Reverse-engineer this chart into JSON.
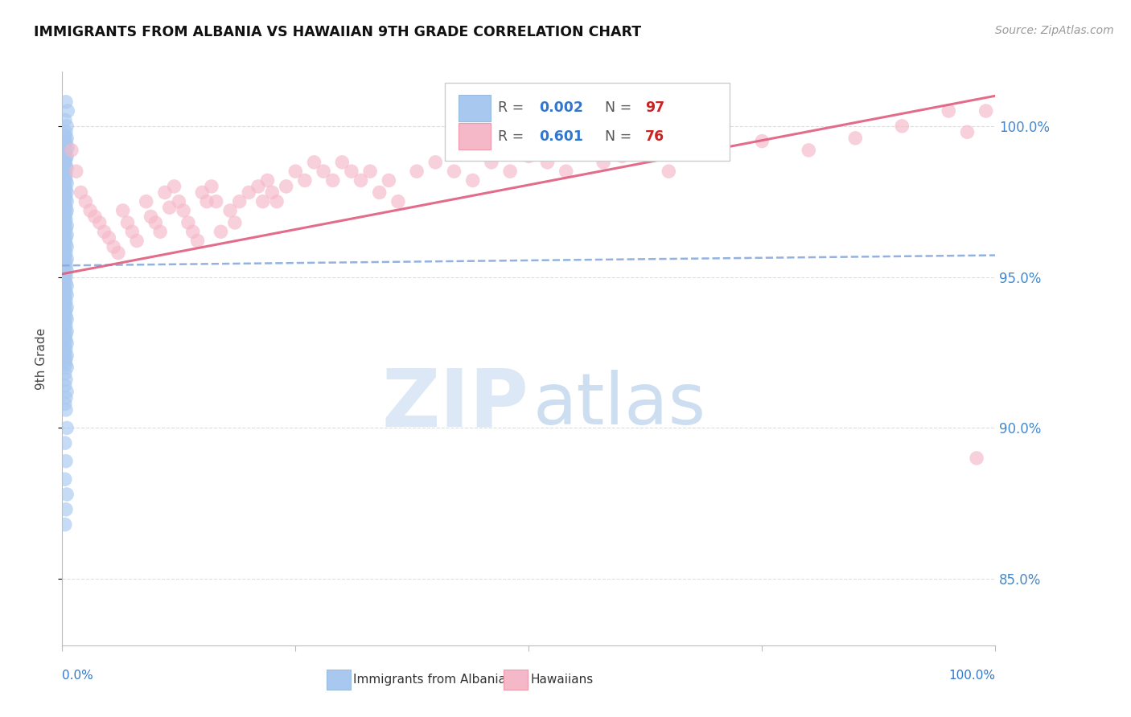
{
  "title": "IMMIGRANTS FROM ALBANIA VS HAWAIIAN 9TH GRADE CORRELATION CHART",
  "source": "Source: ZipAtlas.com",
  "ylabel": "9th Grade",
  "ytick_labels": [
    "85.0%",
    "90.0%",
    "95.0%",
    "100.0%"
  ],
  "ytick_values": [
    0.85,
    0.9,
    0.95,
    1.0
  ],
  "xlim": [
    0.0,
    1.0
  ],
  "ylim": [
    0.828,
    1.018
  ],
  "blue_color": "#a8c8f0",
  "pink_color": "#f5b8c8",
  "blue_line_color": "#88aadd",
  "pink_line_color": "#e06080",
  "blue_scatter_x": [
    0.004,
    0.006,
    0.003,
    0.005,
    0.004,
    0.003,
    0.005,
    0.004,
    0.003,
    0.006,
    0.004,
    0.003,
    0.005,
    0.004,
    0.003,
    0.004,
    0.005,
    0.003,
    0.004,
    0.003,
    0.004,
    0.005,
    0.003,
    0.004,
    0.005,
    0.003,
    0.004,
    0.005,
    0.003,
    0.004,
    0.005,
    0.004,
    0.003,
    0.004,
    0.003,
    0.005,
    0.004,
    0.003,
    0.005,
    0.004,
    0.003,
    0.004,
    0.005,
    0.003,
    0.004,
    0.003,
    0.005,
    0.004,
    0.003,
    0.004,
    0.005,
    0.003,
    0.004,
    0.003,
    0.004,
    0.005,
    0.003,
    0.004,
    0.005,
    0.003,
    0.004,
    0.003,
    0.005,
    0.004,
    0.003,
    0.004,
    0.005,
    0.003,
    0.004,
    0.003,
    0.005,
    0.004,
    0.003,
    0.004,
    0.005,
    0.003,
    0.004,
    0.003,
    0.005,
    0.004,
    0.003,
    0.004,
    0.005,
    0.003,
    0.004,
    0.003,
    0.005,
    0.004,
    0.003,
    0.004,
    0.005,
    0.003,
    0.004,
    0.003,
    0.005,
    0.004,
    0.003
  ],
  "blue_scatter_y": [
    1.008,
    1.005,
    1.002,
    1.0,
    0.998,
    0.997,
    0.996,
    0.995,
    0.994,
    0.993,
    0.992,
    0.991,
    0.99,
    0.989,
    0.988,
    0.987,
    0.986,
    0.985,
    0.984,
    0.983,
    0.982,
    0.981,
    0.98,
    0.979,
    0.978,
    0.977,
    0.976,
    0.975,
    0.974,
    0.973,
    0.972,
    0.971,
    0.97,
    0.969,
    0.968,
    0.967,
    0.966,
    0.965,
    0.964,
    0.963,
    0.962,
    0.961,
    0.96,
    0.959,
    0.958,
    0.957,
    0.956,
    0.955,
    0.954,
    0.953,
    0.952,
    0.951,
    0.95,
    0.949,
    0.948,
    0.947,
    0.946,
    0.945,
    0.944,
    0.943,
    0.942,
    0.941,
    0.94,
    0.939,
    0.938,
    0.937,
    0.936,
    0.935,
    0.934,
    0.933,
    0.932,
    0.931,
    0.93,
    0.929,
    0.928,
    0.927,
    0.926,
    0.925,
    0.924,
    0.923,
    0.922,
    0.921,
    0.92,
    0.918,
    0.916,
    0.914,
    0.912,
    0.91,
    0.908,
    0.906,
    0.9,
    0.895,
    0.889,
    0.883,
    0.878,
    0.873,
    0.868
  ],
  "pink_scatter_x": [
    0.01,
    0.015,
    0.02,
    0.025,
    0.03,
    0.035,
    0.04,
    0.045,
    0.05,
    0.055,
    0.06,
    0.065,
    0.07,
    0.075,
    0.08,
    0.09,
    0.095,
    0.1,
    0.105,
    0.11,
    0.115,
    0.12,
    0.125,
    0.13,
    0.135,
    0.14,
    0.145,
    0.15,
    0.155,
    0.16,
    0.165,
    0.17,
    0.18,
    0.185,
    0.19,
    0.2,
    0.21,
    0.215,
    0.22,
    0.225,
    0.23,
    0.24,
    0.25,
    0.26,
    0.27,
    0.28,
    0.29,
    0.3,
    0.31,
    0.32,
    0.33,
    0.34,
    0.35,
    0.36,
    0.38,
    0.4,
    0.42,
    0.44,
    0.46,
    0.48,
    0.5,
    0.52,
    0.54,
    0.56,
    0.58,
    0.6,
    0.65,
    0.7,
    0.75,
    0.8,
    0.85,
    0.9,
    0.95,
    0.97,
    0.99,
    0.98
  ],
  "pink_scatter_y": [
    0.992,
    0.985,
    0.978,
    0.975,
    0.972,
    0.97,
    0.968,
    0.965,
    0.963,
    0.96,
    0.958,
    0.972,
    0.968,
    0.965,
    0.962,
    0.975,
    0.97,
    0.968,
    0.965,
    0.978,
    0.973,
    0.98,
    0.975,
    0.972,
    0.968,
    0.965,
    0.962,
    0.978,
    0.975,
    0.98,
    0.975,
    0.965,
    0.972,
    0.968,
    0.975,
    0.978,
    0.98,
    0.975,
    0.982,
    0.978,
    0.975,
    0.98,
    0.985,
    0.982,
    0.988,
    0.985,
    0.982,
    0.988,
    0.985,
    0.982,
    0.985,
    0.978,
    0.982,
    0.975,
    0.985,
    0.988,
    0.985,
    0.982,
    0.988,
    0.985,
    0.99,
    0.988,
    0.985,
    0.992,
    0.988,
    0.99,
    0.985,
    0.992,
    0.995,
    0.992,
    0.996,
    1.0,
    1.005,
    0.998,
    1.005,
    0.89
  ],
  "blue_trend_x": [
    0.0,
    1.0
  ],
  "blue_trend_y": [
    0.9538,
    0.9572
  ],
  "pink_trend_x": [
    0.0,
    1.0
  ],
  "pink_trend_y": [
    0.951,
    1.01
  ]
}
